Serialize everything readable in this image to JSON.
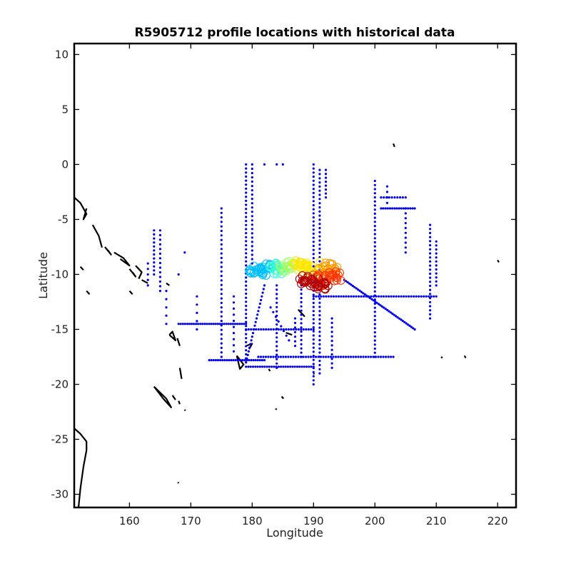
{
  "chart_data": {
    "type": "scatter",
    "title": "R5905712 profile locations with historical data",
    "xlabel": "Longitude",
    "ylabel": "Latitude",
    "xlim": [
      151,
      223
    ],
    "ylim": [
      -31.2,
      11
    ],
    "xticks": [
      160,
      170,
      180,
      190,
      200,
      210,
      220
    ],
    "yticks": [
      10,
      5,
      0,
      -5,
      -10,
      -15,
      -20,
      -25,
      -30
    ],
    "grid": false,
    "legend": "none",
    "colors": {
      "historical": "#0000ee",
      "coast": "#000000",
      "profile_ramp": [
        "#00bfff",
        "#30ffcf",
        "#9fff60",
        "#ffe600",
        "#ff9900",
        "#ff3300",
        "#b30000"
      ]
    },
    "series": [
      {
        "role": "historical",
        "marker": "dot",
        "lines": [
          {
            "from": [
              179,
              0
            ],
            "to": [
              179,
              -18
            ],
            "n": 50
          },
          {
            "from": [
              180,
              0
            ],
            "to": [
              180,
              -9
            ],
            "n": 24
          },
          {
            "from": [
              190,
              0
            ],
            "to": [
              190,
              -20
            ],
            "n": 55
          },
          {
            "from": [
              191,
              -0.5
            ],
            "to": [
              191,
              -19
            ],
            "n": 50
          },
          {
            "from": [
              192,
              -0.5
            ],
            "to": [
              192,
              -3
            ],
            "n": 8
          },
          {
            "from": [
              200,
              -1.5
            ],
            "to": [
              200,
              -17.5
            ],
            "n": 44
          },
          {
            "from": [
              202,
              -2
            ],
            "to": [
              202,
              -3.5
            ],
            "n": 4
          },
          {
            "from": [
              205,
              -4
            ],
            "to": [
              205,
              -8
            ],
            "n": 10
          },
          {
            "from": [
              209,
              -5.5
            ],
            "to": [
              209,
              -14
            ],
            "n": 24
          },
          {
            "from": [
              210,
              -7
            ],
            "to": [
              210,
              -11
            ],
            "n": 12
          },
          {
            "from": [
              175,
              -4
            ],
            "to": [
              175,
              -17.5
            ],
            "n": 34
          },
          {
            "from": [
              184,
              -11
            ],
            "to": [
              184,
              -18.5
            ],
            "n": 20
          },
          {
            "from": [
              188,
              -11
            ],
            "to": [
              188,
              -17.5
            ],
            "n": 18
          },
          {
            "from": [
              195,
              -10.5
            ],
            "to": [
              206.5,
              -15
            ],
            "n": 42
          },
          {
            "from": [
              190,
              -12
            ],
            "to": [
              210,
              -12
            ],
            "n": 50
          },
          {
            "from": [
              168,
              -14.5
            ],
            "to": [
              179,
              -14.5
            ],
            "n": 32
          },
          {
            "from": [
              179,
              -15
            ],
            "to": [
              190,
              -15
            ],
            "n": 28
          },
          {
            "from": [
              173,
              -17.8
            ],
            "to": [
              182,
              -17.8
            ],
            "n": 26
          },
          {
            "from": [
              181,
              -17.5
            ],
            "to": [
              203,
              -17.5
            ],
            "n": 55
          },
          {
            "from": [
              179,
              -18.4
            ],
            "to": [
              190,
              -18.4
            ],
            "n": 30
          },
          {
            "from": [
              182,
              -11
            ],
            "to": [
              179,
              -18
            ],
            "n": 22
          },
          {
            "from": [
              201,
              -4
            ],
            "to": [
              206.5,
              -4
            ],
            "n": 16
          },
          {
            "from": [
              201,
              -3
            ],
            "to": [
              205,
              -3
            ],
            "n": 10
          },
          {
            "from": [
              164,
              -6
            ],
            "to": [
              164,
              -10
            ],
            "n": 12
          },
          {
            "from": [
              165,
              -6
            ],
            "to": [
              165,
              -11.5
            ],
            "n": 14
          },
          {
            "from": [
              163,
              -9
            ],
            "to": [
              163,
              -11
            ],
            "n": 5
          },
          {
            "from": [
              182,
              0
            ],
            "to": [
              182,
              0
            ],
            "n": 1
          },
          {
            "from": [
              184,
              0
            ],
            "to": [
              185,
              0
            ],
            "n": 2
          },
          {
            "from": [
              166,
              -14.5
            ],
            "to": [
              166,
              -11.5
            ],
            "n": 5
          },
          {
            "from": [
              169,
              -8
            ],
            "to": [
              169,
              -8
            ],
            "n": 1
          },
          {
            "from": [
              168,
              -10
            ],
            "to": [
              168,
              -10
            ],
            "n": 1
          },
          {
            "from": [
              171,
              -12
            ],
            "to": [
              171,
              -15
            ],
            "n": 5
          },
          {
            "from": [
              187,
              -14
            ],
            "to": [
              187,
              -16.5
            ],
            "n": 7
          },
          {
            "from": [
              193,
              -14
            ],
            "to": [
              193,
              -18.5
            ],
            "n": 12
          },
          {
            "from": [
              183,
              -13
            ],
            "to": [
              186,
              -16
            ],
            "n": 8
          },
          {
            "from": [
              177,
              -12
            ],
            "to": [
              177,
              -17
            ],
            "n": 10
          }
        ]
      },
      {
        "role": "profiles",
        "marker": "open-circle",
        "clusters": [
          {
            "lon": 180.5,
            "lat": -9.7,
            "r": 1.0,
            "n": 14,
            "color_index": 0
          },
          {
            "lon": 182.2,
            "lat": -9.6,
            "r": 1.1,
            "n": 16,
            "color_index": 0
          },
          {
            "lon": 184.0,
            "lat": -9.5,
            "r": 1.0,
            "n": 16,
            "color_index": 1
          },
          {
            "lon": 185.8,
            "lat": -9.3,
            "r": 1.0,
            "n": 16,
            "color_index": 2
          },
          {
            "lon": 187.8,
            "lat": -9.2,
            "r": 1.0,
            "n": 16,
            "color_index": 3
          },
          {
            "lon": 190.0,
            "lat": -9.3,
            "r": 1.2,
            "n": 18,
            "color_index": 3
          },
          {
            "lon": 192.5,
            "lat": -9.6,
            "r": 1.3,
            "n": 20,
            "color_index": 4
          },
          {
            "lon": 193.5,
            "lat": -10.2,
            "r": 1.0,
            "n": 14,
            "color_index": 5
          },
          {
            "lon": 191.0,
            "lat": -10.5,
            "r": 1.2,
            "n": 18,
            "color_index": 5
          },
          {
            "lon": 189.0,
            "lat": -10.6,
            "r": 1.1,
            "n": 18,
            "color_index": 6
          },
          {
            "lon": 191.2,
            "lat": -10.9,
            "r": 1.0,
            "n": 16,
            "color_index": 6
          }
        ]
      },
      {
        "role": "coastline",
        "marker": "line",
        "polylines": [
          [
            [
              151,
              -3
            ],
            [
              152,
              -3.5
            ],
            [
              153,
              -4.5
            ],
            [
              152.5,
              -5
            ],
            [
              153,
              -4
            ]
          ],
          [
            [
              154,
              -5.5
            ],
            [
              155,
              -6.5
            ],
            [
              155.5,
              -7.5
            ],
            [
              155,
              -6.5
            ],
            [
              154,
              -5.5
            ]
          ],
          [
            [
              156,
              -7.5
            ],
            [
              157,
              -8.2
            ],
            [
              156.5,
              -7.8
            ]
          ],
          [
            [
              157.5,
              -8
            ],
            [
              159,
              -8.5
            ],
            [
              160,
              -9.2
            ],
            [
              158.5,
              -8.6
            ]
          ],
          [
            [
              160,
              -9.5
            ],
            [
              161,
              -10.2
            ],
            [
              160.5,
              -9.8
            ]
          ],
          [
            [
              161,
              -9.2
            ],
            [
              162,
              -9.8
            ],
            [
              161.5,
              -10.4
            ]
          ],
          [
            [
              152,
              -9.3
            ],
            [
              152.5,
              -9.6
            ]
          ],
          [
            [
              160,
              -11.5
            ],
            [
              160.5,
              -11.8
            ]
          ],
          [
            [
              153,
              -11.5
            ],
            [
              153.5,
              -11.8
            ]
          ],
          [
            [
              162,
              -10.5
            ],
            [
              163,
              -10.8
            ]
          ],
          [
            [
              166,
              -10.8
            ],
            [
              166.5,
              -11
            ]
          ],
          [
            [
              166.5,
              -15.5
            ],
            [
              167.5,
              -16
            ],
            [
              167,
              -15.2
            ],
            [
              166.5,
              -15.5
            ]
          ],
          [
            [
              167.8,
              -15.8
            ],
            [
              168.2,
              -16.5
            ]
          ],
          [
            [
              168.2,
              -18.5
            ],
            [
              168.5,
              -19.5
            ]
          ],
          [
            [
              164,
              -20.2
            ],
            [
              165.5,
              -21.3
            ],
            [
              166.8,
              -22.1
            ],
            [
              166,
              -21.3
            ],
            [
              164,
              -20.2
            ]
          ],
          [
            [
              167,
              -21
            ],
            [
              167.5,
              -21.4
            ]
          ],
          [
            [
              168,
              -21.5
            ],
            [
              168.2,
              -21.8
            ]
          ],
          [
            [
              151,
              -24
            ],
            [
              152,
              -24.5
            ],
            [
              153,
              -25.2
            ],
            [
              153,
              -26
            ],
            [
              152.5,
              -27.5
            ],
            [
              152,
              -29.5
            ],
            [
              151.7,
              -31.2
            ]
          ],
          [
            [
              177.5,
              -17.4
            ],
            [
              178.6,
              -18.2
            ],
            [
              178,
              -18.6
            ],
            [
              177.5,
              -17.4
            ]
          ],
          [
            [
              179,
              -16.5
            ],
            [
              180,
              -16.3
            ],
            [
              179.5,
              -16.8
            ]
          ],
          [
            [
              185.5,
              -15.3
            ],
            [
              186.5,
              -15.5
            ]
          ],
          [
            [
              187.5,
              -13.2
            ],
            [
              188.5,
              -13.8
            ],
            [
              188,
              -13.5
            ]
          ],
          [
            [
              184.8,
              -21.1
            ],
            [
              185.1,
              -21.3
            ]
          ],
          [
            [
              203,
              1.9
            ],
            [
              203.2,
              1.6
            ]
          ],
          [
            [
              210.8,
              -17.5
            ],
            [
              211,
              -17.6
            ]
          ],
          [
            [
              214.6,
              -17.4
            ],
            [
              214.8,
              -17.6
            ]
          ],
          [
            [
              220,
              -8.7
            ],
            [
              220.2,
              -8.9
            ]
          ],
          [
            [
              190,
              -19
            ],
            [
              190.1,
              -19.1
            ]
          ],
          [
            [
              183.8,
              -22.2
            ],
            [
              184,
              -22.3
            ]
          ],
          [
            [
              167.9,
              -28.9
            ],
            [
              168,
              -29
            ]
          ],
          [
            [
              169,
              -22.3
            ],
            [
              169.1,
              -22.4
            ]
          ],
          [
            [
              182.7,
              -18.6
            ],
            [
              182.9,
              -18.8
            ]
          ]
        ]
      }
    ]
  }
}
